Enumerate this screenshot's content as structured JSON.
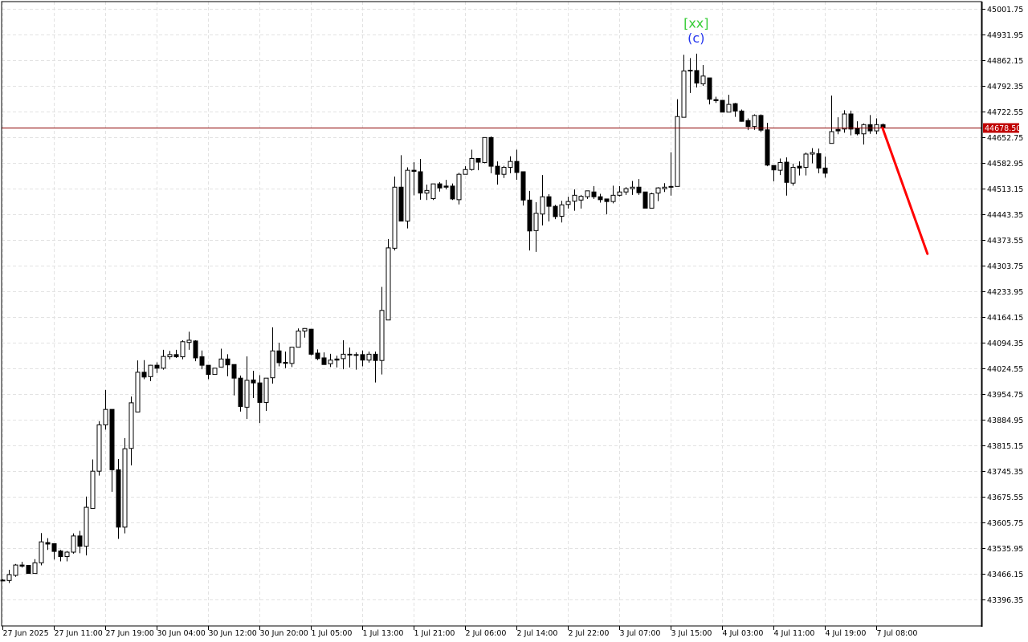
{
  "chart_data": {
    "type": "candlestick",
    "title": "",
    "xlabel": "",
    "ylabel": "",
    "grid": true,
    "ylim": [
      43324.4,
      45021.4
    ],
    "xlim": [
      -0.1,
      152.4
    ],
    "y_tick_labels": [
      "45001.75",
      "44931.95",
      "44862.15",
      "44792.35",
      "44722.55",
      "44652.75",
      "44582.95",
      "44513.15",
      "44443.35",
      "44373.55",
      "44303.75",
      "44233.95",
      "44164.15",
      "44094.35",
      "44024.55",
      "43954.75",
      "43884.95",
      "43815.15",
      "43745.35",
      "43675.55",
      "43605.75",
      "43535.95",
      "43466.15",
      "43396.35"
    ],
    "x_tick_labels": [
      {
        "index": 0,
        "label": "27 Jun 2025"
      },
      {
        "index": 8,
        "label": "27 Jun 11:00"
      },
      {
        "index": 16,
        "label": "27 Jun 19:00"
      },
      {
        "index": 24,
        "label": "30 Jun 04:00"
      },
      {
        "index": 32,
        "label": "30 Jun 12:00"
      },
      {
        "index": 40,
        "label": "30 Jun 20:00"
      },
      {
        "index": 48,
        "label": "1 Jul 05:00"
      },
      {
        "index": 56,
        "label": "1 Jul 13:00"
      },
      {
        "index": 64,
        "label": "1 Jul 21:00"
      },
      {
        "index": 72,
        "label": "2 Jul 06:00"
      },
      {
        "index": 80,
        "label": "2 Jul 14:00"
      },
      {
        "index": 88,
        "label": "2 Jul 22:00"
      },
      {
        "index": 96,
        "label": "3 Jul 07:00"
      },
      {
        "index": 104,
        "label": "3 Jul 15:00"
      },
      {
        "index": 112,
        "label": "4 Jul 03:00"
      },
      {
        "index": 120,
        "label": "4 Jul 11:00"
      },
      {
        "index": 128,
        "label": "4 Jul 19:00"
      },
      {
        "index": 136,
        "label": "7 Jul 08:00"
      }
    ],
    "current_price": {
      "value": 44678.5,
      "label": "44678.50",
      "color": "#c00000"
    },
    "colors": {
      "bull_fill": "#ffffff",
      "bear_fill": "#000000",
      "outline": "#000000",
      "forecast": "#ff0000",
      "grid": "#e2e2e2"
    },
    "ohlc_fields": [
      "open",
      "high",
      "low",
      "close"
    ],
    "candles": [
      [
        43449,
        43452,
        43447,
        43449
      ],
      [
        43448,
        43477,
        43441,
        43464
      ],
      [
        43462,
        43493,
        43458,
        43490
      ],
      [
        43490,
        43499,
        43483,
        43487
      ],
      [
        43489,
        43490,
        43467,
        43467
      ],
      [
        43467,
        43506,
        43467,
        43496
      ],
      [
        43496,
        43577,
        43489,
        43553
      ],
      [
        43551,
        43563,
        43531,
        43547
      ],
      [
        43548,
        43548,
        43505,
        43527
      ],
      [
        43528,
        43531,
        43500,
        43513
      ],
      [
        43513,
        43528,
        43500,
        43525
      ],
      [
        43525,
        43576,
        43521,
        43569
      ],
      [
        43569,
        43583,
        43522,
        43541
      ],
      [
        43541,
        43676,
        43516,
        43647
      ],
      [
        43644,
        43777,
        43644,
        43745
      ],
      [
        43745,
        43881,
        43733,
        43871
      ],
      [
        43871,
        43966,
        43858,
        43913
      ],
      [
        43913,
        43913,
        43689,
        43749
      ],
      [
        43749,
        43778,
        43561,
        43593
      ],
      [
        43593,
        43835,
        43576,
        43806
      ],
      [
        43807,
        43948,
        43761,
        43931
      ],
      [
        43906,
        44046,
        43906,
        44014
      ],
      [
        44014,
        44047,
        43995,
        44001
      ],
      [
        44002,
        44034,
        43990,
        44033
      ],
      [
        44033,
        44041,
        44012,
        44025
      ],
      [
        44025,
        44075,
        44021,
        44057
      ],
      [
        44056,
        44072,
        44049,
        44062
      ],
      [
        44062,
        44075,
        44053,
        44056
      ],
      [
        44056,
        44101,
        44049,
        44097
      ],
      [
        44095,
        44124,
        44075,
        44101
      ],
      [
        44099,
        44101,
        44044,
        44053
      ],
      [
        44056,
        44073,
        44022,
        44033
      ],
      [
        44033,
        44033,
        43995,
        44008
      ],
      [
        44008,
        44025,
        44008,
        44025
      ],
      [
        44028,
        44078,
        44028,
        44050
      ],
      [
        44050,
        44063,
        44003,
        44034
      ],
      [
        44035,
        44035,
        43951,
        43998
      ],
      [
        43998,
        44005,
        43907,
        43921
      ],
      [
        43919,
        44057,
        43887,
        43992
      ],
      [
        43993,
        44018,
        43944,
        43985
      ],
      [
        43985,
        44006,
        43876,
        43932
      ],
      [
        43932,
        43998,
        43909,
        43998
      ],
      [
        43999,
        44136,
        43983,
        44072
      ],
      [
        44072,
        44094,
        44030,
        44040
      ],
      [
        44041,
        44070,
        44025,
        44038
      ],
      [
        44038,
        44082,
        44028,
        44082
      ],
      [
        44082,
        44133,
        44082,
        44126
      ],
      [
        44126,
        44134,
        44108,
        44133
      ],
      [
        44131,
        44131,
        44060,
        44063
      ],
      [
        44066,
        44076,
        44047,
        44051
      ],
      [
        44053,
        44068,
        44034,
        44035
      ],
      [
        44037,
        44064,
        44028,
        44047
      ],
      [
        44050,
        44059,
        44027,
        44047
      ],
      [
        44051,
        44101,
        44022,
        44063
      ],
      [
        44063,
        44081,
        44027,
        44062
      ],
      [
        44062,
        44068,
        44021,
        44060
      ],
      [
        44062,
        44073,
        44030,
        44047
      ],
      [
        44047,
        44070,
        44040,
        44063
      ],
      [
        44063,
        44070,
        43986,
        44046
      ],
      [
        44046,
        44246,
        44008,
        44182
      ],
      [
        44156,
        44376,
        44156,
        44352
      ],
      [
        44351,
        44546,
        44345,
        44517
      ],
      [
        44517,
        44604,
        44425,
        44425
      ],
      [
        44425,
        44571,
        44405,
        44563
      ],
      [
        44563,
        44585,
        44495,
        44560
      ],
      [
        44559,
        44594,
        44483,
        44501
      ],
      [
        44501,
        44524,
        44482,
        44508
      ],
      [
        44486,
        44526,
        44482,
        44526
      ],
      [
        44526,
        44531,
        44505,
        44515
      ],
      [
        44520,
        44537,
        44511,
        44517
      ],
      [
        44520,
        44527,
        44482,
        44485
      ],
      [
        44483,
        44556,
        44470,
        44552
      ],
      [
        44552,
        44574,
        44552,
        44565
      ],
      [
        44565,
        44619,
        44562,
        44595
      ],
      [
        44595,
        44595,
        44563,
        44585
      ],
      [
        44584,
        44652,
        44582,
        44652
      ],
      [
        44652,
        44655,
        44555,
        44574
      ],
      [
        44574,
        44587,
        44524,
        44552
      ],
      [
        44552,
        44575,
        44542,
        44571
      ],
      [
        44571,
        44601,
        44555,
        44587
      ],
      [
        44587,
        44619,
        44537,
        44557
      ],
      [
        44559,
        44559,
        44467,
        44482
      ],
      [
        44482,
        44507,
        44345,
        44398
      ],
      [
        44399,
        44476,
        44341,
        44446
      ],
      [
        44444,
        44550,
        44413,
        44491
      ],
      [
        44491,
        44498,
        44424,
        44465
      ],
      [
        44465,
        44469,
        44430,
        44437
      ],
      [
        44438,
        44480,
        44421,
        44469
      ],
      [
        44470,
        44491,
        44459,
        44478
      ],
      [
        44479,
        44511,
        44453,
        44495
      ],
      [
        44482,
        44496,
        44459,
        44492
      ],
      [
        44491,
        44507,
        44485,
        44507
      ],
      [
        44504,
        44520,
        44485,
        44491
      ],
      [
        44491,
        44499,
        44475,
        44483
      ],
      [
        44485,
        44485,
        44443,
        44478
      ],
      [
        44478,
        44521,
        44473,
        44495
      ],
      [
        44495,
        44520,
        44492,
        44504
      ],
      [
        44504,
        44517,
        44496,
        44513
      ],
      [
        44513,
        44534,
        44496,
        44517
      ],
      [
        44517,
        44539,
        44496,
        44502
      ],
      [
        44504,
        44504,
        44460,
        44460
      ],
      [
        44460,
        44502,
        44460,
        44499
      ],
      [
        44501,
        44517,
        44479,
        44515
      ],
      [
        44513,
        44528,
        44504,
        44517
      ],
      [
        44519,
        44612,
        44494,
        44517
      ],
      [
        44519,
        44756,
        44519,
        44709
      ],
      [
        44707,
        44877,
        44707,
        44833
      ],
      [
        44835,
        44868,
        44773,
        44834
      ],
      [
        44834,
        44880,
        44788,
        44800
      ],
      [
        44798,
        44849,
        44792,
        44819
      ],
      [
        44814,
        44814,
        44742,
        44756
      ],
      [
        44755,
        44763,
        44746,
        44752
      ],
      [
        44753,
        44753,
        44721,
        44721
      ],
      [
        44721,
        44768,
        44721,
        44742
      ],
      [
        44744,
        44746,
        44708,
        44724
      ],
      [
        44724,
        44728,
        44695,
        44696
      ],
      [
        44698,
        44704,
        44672,
        44682
      ],
      [
        44682,
        44715,
        44673,
        44712
      ],
      [
        44712,
        44715,
        44667,
        44672
      ],
      [
        44673,
        44692,
        44574,
        44577
      ],
      [
        44576,
        44576,
        44533,
        44564
      ],
      [
        44563,
        44595,
        44550,
        44584
      ],
      [
        44585,
        44598,
        44494,
        44530
      ],
      [
        44528,
        44581,
        44521,
        44571
      ],
      [
        44574,
        44587,
        44549,
        44569
      ],
      [
        44571,
        44611,
        44549,
        44607
      ],
      [
        44607,
        44623,
        44582,
        44611
      ],
      [
        44608,
        44622,
        44555,
        44569
      ],
      [
        44569,
        44600,
        44543,
        44555
      ],
      [
        44636,
        44766,
        44636,
        44668
      ],
      [
        44674,
        44707,
        44661,
        44670
      ],
      [
        44675,
        44726,
        44665,
        44716
      ],
      [
        44716,
        44725,
        44658,
        44675
      ],
      [
        44677,
        44696,
        44658,
        44662
      ],
      [
        44662,
        44690,
        44633,
        44687
      ],
      [
        44687,
        44713,
        44662,
        44670
      ],
      [
        44670,
        44704,
        44661,
        44687
      ],
      [
        44687,
        44690,
        44678,
        44678.5
      ]
    ],
    "forecast_line": {
      "from": {
        "index": 137,
        "price": 44678.5
      },
      "to": {
        "index": 144,
        "price": 44336
      },
      "color": "#ff0000"
    },
    "annotations": [
      {
        "text": "[xx]",
        "index": 108,
        "price": 44964,
        "color": "#33cc33"
      },
      {
        "text": "(c)",
        "index": 108,
        "price": 44923,
        "color": "#2233ee"
      }
    ]
  }
}
